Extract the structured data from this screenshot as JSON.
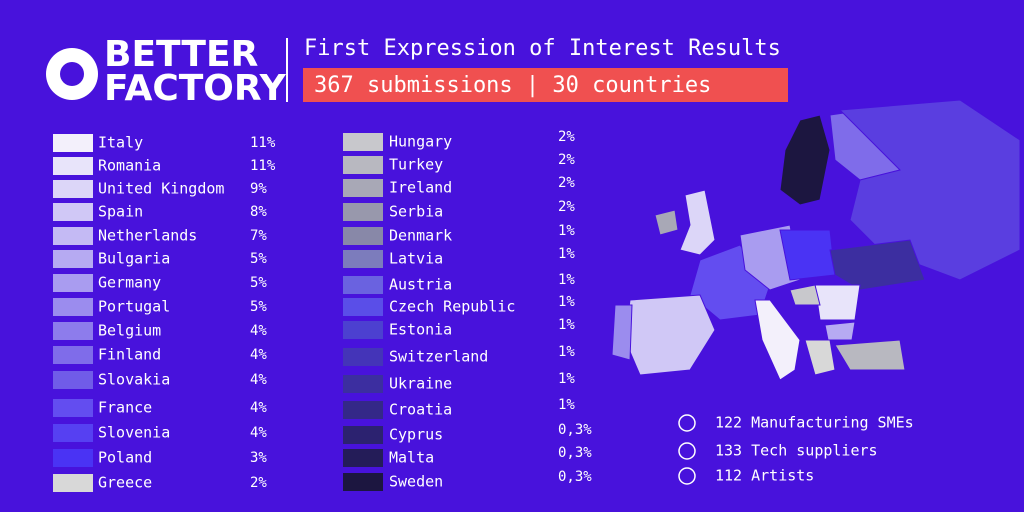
{
  "header": {
    "logo_line1": "BETTER",
    "logo_line2": "FACTORY",
    "title": "First Expression of Interest Results",
    "subtitle": "367 submissions | 30 countries"
  },
  "legend": {
    "left": [
      {
        "label": "Italy",
        "share": "11%",
        "color": "#f3f0fb"
      },
      {
        "label": "Romania",
        "share": "11%",
        "color": "#e8e4fa"
      },
      {
        "label": "United Kingdom",
        "share": "9%",
        "color": "#dcd6f8"
      },
      {
        "label": "Spain",
        "share": "8%",
        "color": "#d0c8f6"
      },
      {
        "label": "Netherlands",
        "share": "7%",
        "color": "#c4baf4"
      },
      {
        "label": "Bulgaria",
        "share": "5%",
        "color": "#b6aaf2"
      },
      {
        "label": "Germany",
        "share": "5%",
        "color": "#a99cf0"
      },
      {
        "label": "Portugal",
        "share": "5%",
        "color": "#9b8cee"
      },
      {
        "label": "Belgium",
        "share": "4%",
        "color": "#8d7cec"
      },
      {
        "label": "Finland",
        "share": "4%",
        "color": "#7f6cea"
      },
      {
        "label": "Slovakia",
        "share": "4%",
        "color": "#705ce8"
      },
      {
        "label": "France",
        "share": "4%",
        "color": "#634df0"
      },
      {
        "label": "Slovenia",
        "share": "4%",
        "color": "#5640f2"
      },
      {
        "label": "Poland",
        "share": "3%",
        "color": "#4a33f4"
      },
      {
        "label": "Greece",
        "share": "2%",
        "color": "#d8d8d8"
      }
    ],
    "right": [
      {
        "label": "Hungary",
        "share": "2%",
        "color": "#c8c8cc"
      },
      {
        "label": "Turkey",
        "share": "2%",
        "color": "#b8b8c0"
      },
      {
        "label": "Ireland",
        "share": "2%",
        "color": "#a8a8b6"
      },
      {
        "label": "Serbia",
        "share": "2%",
        "color": "#9898ac"
      },
      {
        "label": "Denmark",
        "share": "1%",
        "color": "#8888a8"
      },
      {
        "label": "Latvia",
        "share": "1%",
        "color": "#7c7cbc"
      },
      {
        "label": "Austria",
        "share": "1%",
        "color": "#6a62e0"
      },
      {
        "label": "Czech Republic",
        "share": "1%",
        "color": "#5a4ee8"
      },
      {
        "label": "Estonia",
        "share": "1%",
        "color": "#4c40d0"
      },
      {
        "label": "Switzerland",
        "share": "1%",
        "color": "#4434b8"
      },
      {
        "label": "Ukraine",
        "share": "1%",
        "color": "#3c2ea0"
      },
      {
        "label": "Croatia",
        "share": "1%",
        "color": "#342888"
      },
      {
        "label": "Cyprus",
        "share": "0,3%",
        "color": "#2c2270"
      },
      {
        "label": "Malta",
        "share": "0,3%",
        "color": "#241c58"
      },
      {
        "label": "Sweden",
        "share": "0,3%",
        "color": "#1c1640"
      }
    ]
  },
  "stats": [
    "122 Manufacturing SMEs",
    "133 Tech suppliers",
    "112 Artists"
  ]
}
